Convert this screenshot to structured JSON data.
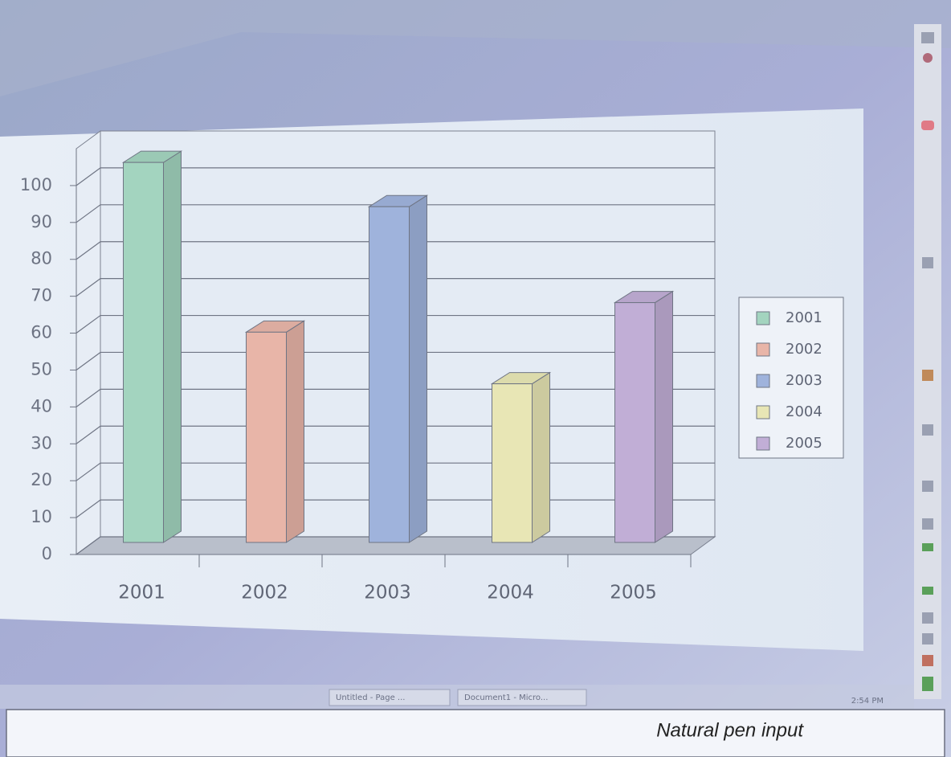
{
  "chart_data": {
    "type": "bar3d",
    "categories": [
      "2001",
      "2002",
      "2003",
      "2004",
      "2005"
    ],
    "values": [
      103,
      57,
      91,
      43,
      65
    ],
    "colors": [
      "#a3d4bf",
      "#e8b5a8",
      "#9fb3dc",
      "#e8e6b5",
      "#c1aed6"
    ],
    "ylim": [
      0,
      110
    ],
    "yticks": [
      0,
      10,
      20,
      30,
      40,
      50,
      60,
      70,
      80,
      90,
      100
    ],
    "grid": true,
    "legend": "right"
  },
  "taskbar": {
    "items": [
      "Untitled - Page ...",
      "Document1 - Micro..."
    ],
    "clock": "2:54 PM"
  },
  "caption": "Natural pen input"
}
